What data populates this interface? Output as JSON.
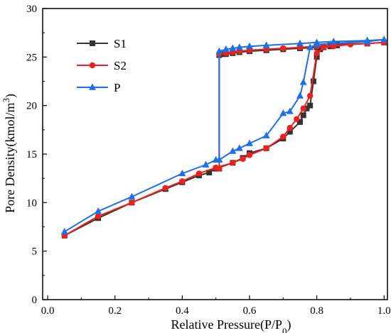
{
  "chart_data": {
    "type": "line",
    "title": "",
    "xlabel": "Relative Pressure(P/P",
    "xlabel_sub": "0",
    "xlabel_end": ")",
    "ylabel": "Pore Density(kmol/m",
    "ylabel_sup": "3",
    "ylabel_end": ")",
    "xlim": [
      0.0,
      1.0
    ],
    "ylim": [
      0,
      30
    ],
    "xticks": [
      "0.0",
      "0.2",
      "0.4",
      "0.6",
      "0.8",
      "1.0"
    ],
    "yticks": [
      "0",
      "5",
      "10",
      "15",
      "20",
      "25",
      "30"
    ],
    "legend_position": "top-left",
    "grid": false,
    "series": [
      {
        "name": "S1",
        "color": "#333333",
        "marker": "square",
        "x": [
          0.05,
          0.15,
          0.25,
          0.35,
          0.4,
          0.45,
          0.48,
          0.5,
          0.55,
          0.58,
          0.6,
          0.65,
          0.7,
          0.72,
          0.75,
          0.76,
          0.77,
          0.78,
          0.79,
          0.8,
          0.81,
          0.82,
          0.84,
          0.86,
          0.95,
          1.0,
          0.95,
          0.86,
          0.84,
          0.82,
          0.8,
          0.75,
          0.7,
          0.65,
          0.6,
          0.57,
          0.55,
          0.53,
          0.52,
          0.51,
          0.51
        ],
        "y": [
          6.6,
          8.4,
          10.0,
          11.4,
          12.1,
          12.8,
          13.1,
          13.5,
          14.1,
          14.6,
          15.1,
          15.6,
          16.6,
          17.3,
          18.3,
          19.0,
          19.7,
          20.0,
          22.5,
          25.0,
          25.8,
          26.0,
          26.1,
          26.2,
          26.4,
          26.5,
          26.4,
          26.3,
          26.2,
          26.1,
          26.0,
          25.9,
          25.8,
          25.7,
          25.6,
          25.5,
          25.4,
          25.3,
          25.3,
          25.2,
          13.5
        ]
      },
      {
        "name": "S2",
        "color": "#ee2020",
        "marker": "circle",
        "x": [
          0.05,
          0.15,
          0.25,
          0.35,
          0.4,
          0.45,
          0.5,
          0.55,
          0.58,
          0.6,
          0.65,
          0.7,
          0.72,
          0.74,
          0.76,
          0.78,
          0.8,
          0.82,
          0.85,
          0.9,
          0.95,
          1.0,
          0.95,
          0.9,
          0.85,
          0.8,
          0.75,
          0.7,
          0.65,
          0.6,
          0.57,
          0.55,
          0.53,
          0.51,
          0.51
        ],
        "y": [
          6.6,
          8.6,
          10.0,
          11.5,
          12.2,
          13.0,
          13.6,
          14.1,
          14.5,
          14.9,
          15.6,
          16.8,
          17.7,
          18.6,
          19.7,
          21.0,
          25.4,
          26.0,
          26.1,
          26.3,
          26.4,
          26.5,
          26.4,
          26.3,
          26.2,
          26.1,
          26.0,
          25.9,
          25.8,
          25.7,
          25.6,
          25.5,
          25.4,
          25.3,
          13.5
        ]
      },
      {
        "name": "P",
        "color": "#1e6fe6",
        "marker": "triangle",
        "x": [
          0.05,
          0.15,
          0.25,
          0.4,
          0.47,
          0.5,
          0.51,
          0.51,
          0.53,
          0.55,
          0.57,
          0.6,
          0.65,
          0.75,
          0.8,
          0.85,
          0.95,
          1.0,
          0.95,
          0.8,
          0.78,
          0.76,
          0.75,
          0.72,
          0.7,
          0.65,
          0.6,
          0.57,
          0.55,
          0.51
        ],
        "y": [
          7.0,
          9.1,
          10.6,
          13.0,
          13.9,
          14.4,
          14.4,
          25.6,
          25.8,
          25.9,
          26.0,
          26.1,
          26.2,
          26.4,
          26.5,
          26.6,
          26.7,
          26.8,
          26.6,
          26.3,
          26.0,
          22.4,
          21.0,
          19.4,
          19.2,
          16.9,
          16.1,
          15.6,
          15.3,
          14.4
        ]
      }
    ]
  }
}
